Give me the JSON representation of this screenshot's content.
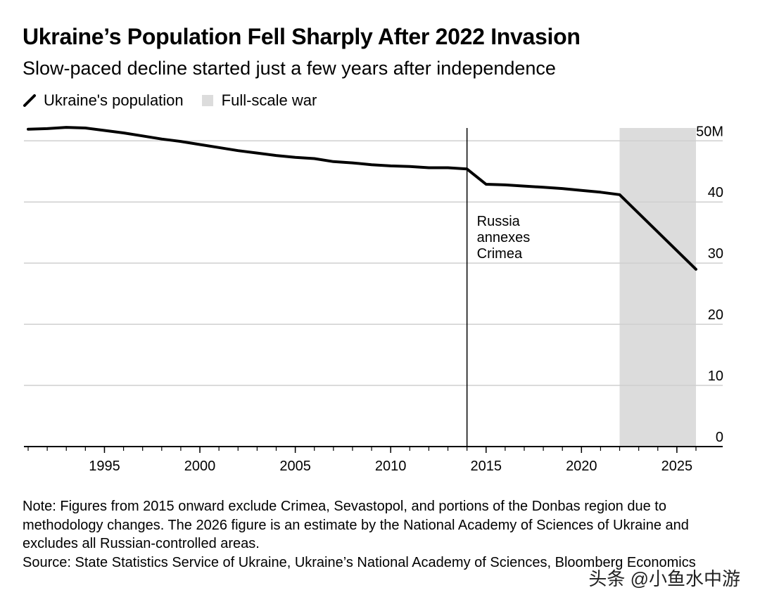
{
  "header": {
    "title": "Ukraine’s Population Fell Sharply After 2022 Invasion",
    "subtitle": "Slow-paced decline started just a few years after independence"
  },
  "legend": {
    "items": [
      {
        "label": "Ukraine's population",
        "icon": "line-swatch-icon",
        "color": "#000000"
      },
      {
        "label": "Full-scale war",
        "icon": "shaded-box-icon",
        "color": "#dcdcdc"
      }
    ]
  },
  "chart_data": {
    "type": "line",
    "title": "Ukraine’s Population Fell Sharply After 2022 Invasion",
    "subtitle": "Slow-paced decline started just a few years after independence",
    "xlabel": "",
    "ylabel": "",
    "xlim": [
      1991,
      2026
    ],
    "ylim": [
      0,
      50
    ],
    "x_ticks": [
      1995,
      2000,
      2005,
      2010,
      2015,
      2020,
      2025
    ],
    "y_ticks": [
      {
        "value": 0,
        "label": "0"
      },
      {
        "value": 10,
        "label": "10"
      },
      {
        "value": 20,
        "label": "20"
      },
      {
        "value": 30,
        "label": "30"
      },
      {
        "value": 40,
        "label": "40"
      },
      {
        "value": 50,
        "label": "50M"
      }
    ],
    "grid": "horizontal",
    "series": [
      {
        "name": "Ukraine's population",
        "color": "#000000",
        "x": [
          1991,
          1992,
          1993,
          1994,
          1995,
          1996,
          1997,
          1998,
          1999,
          2000,
          2001,
          2002,
          2003,
          2004,
          2005,
          2006,
          2007,
          2008,
          2009,
          2010,
          2011,
          2012,
          2013,
          2014,
          2015,
          2016,
          2017,
          2018,
          2019,
          2020,
          2021,
          2022,
          2026
        ],
        "y": [
          51.9,
          52.0,
          52.2,
          52.1,
          51.7,
          51.3,
          50.8,
          50.3,
          49.9,
          49.4,
          48.9,
          48.4,
          48.0,
          47.6,
          47.3,
          47.1,
          46.6,
          46.4,
          46.1,
          45.9,
          45.8,
          45.6,
          45.6,
          45.4,
          42.9,
          42.8,
          42.6,
          42.4,
          42.2,
          41.9,
          41.6,
          41.2,
          29.0
        ]
      }
    ],
    "shaded_regions": [
      {
        "name": "Full-scale war",
        "x_start": 2022,
        "x_end": 2026,
        "color": "#dcdcdc"
      }
    ],
    "annotations": [
      {
        "x": 2014,
        "lines": [
          "Russia",
          "annexes",
          "Crimea"
        ]
      }
    ]
  },
  "footer": {
    "note": "Note: Figures from 2015 onward exclude Crimea, Sevastopol, and portions of the Donbas region due to methodology changes. The 2026 figure is an estimate by the National Academy of Sciences of Ukraine and excludes all Russian-controlled areas.",
    "source": "Source: State Statistics Service of Ukraine, Ukraine’s National Academy of Sciences, Bloomberg Economics"
  },
  "watermark": "头条 @小鱼水中游"
}
